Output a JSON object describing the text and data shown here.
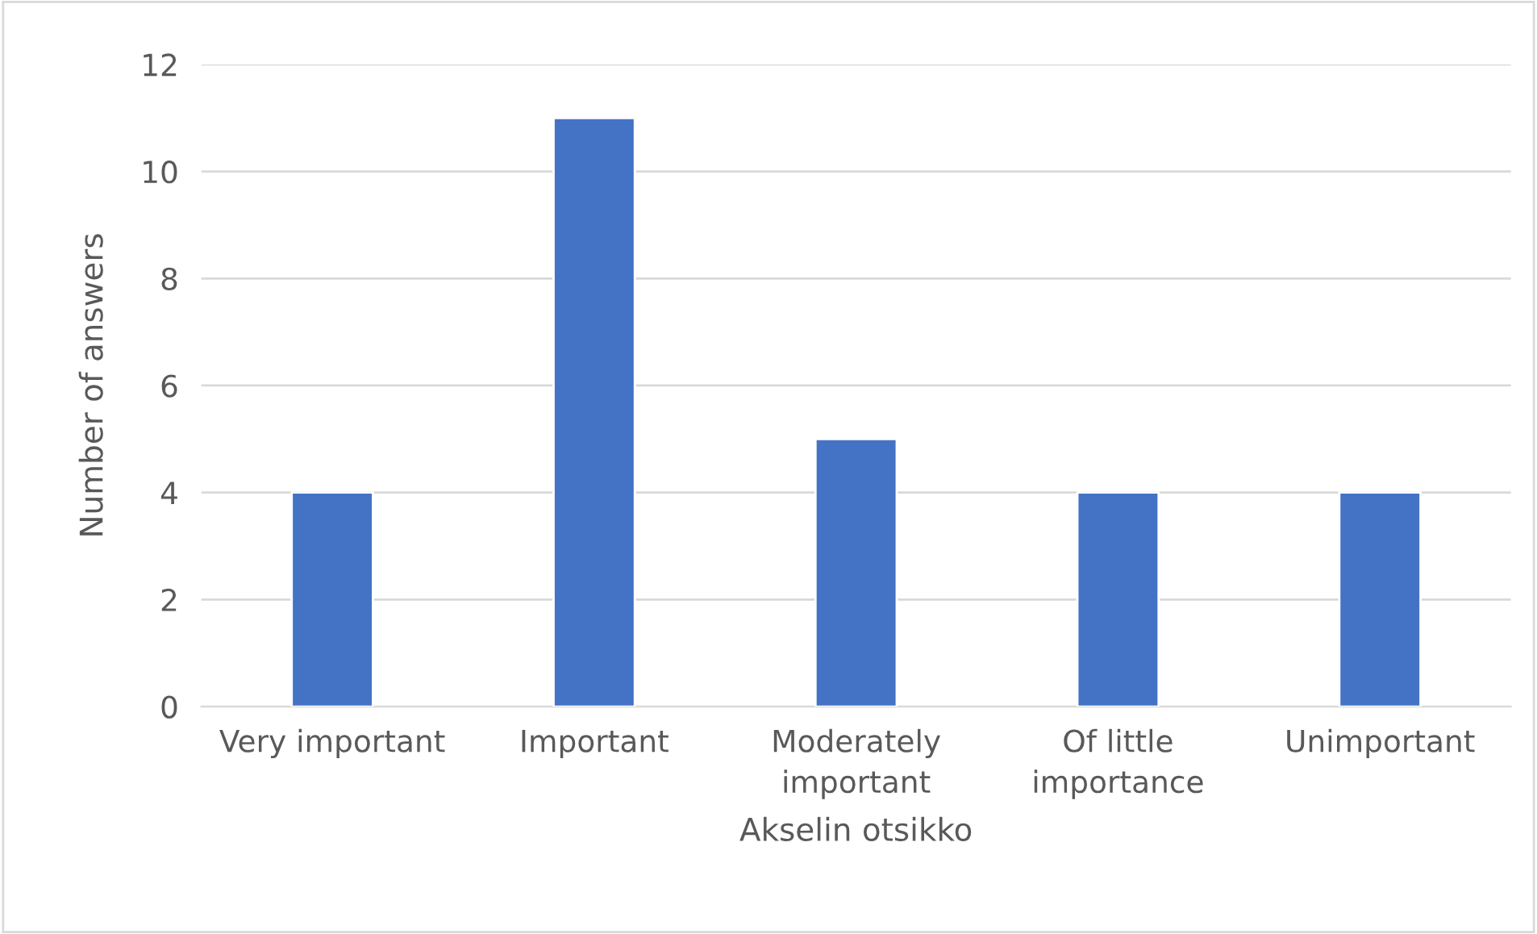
{
  "chart_data": {
    "type": "bar",
    "xlabel": "Akselin otsikko",
    "ylabel": "Number of answers",
    "categories": [
      "Very important",
      "Important",
      "Moderately important",
      "Of little importance",
      "Unimportant"
    ],
    "values": [
      4,
      11,
      5,
      4,
      4
    ],
    "color": "#4472c4",
    "ylim": [
      0,
      12
    ],
    "yticks": [
      0,
      2,
      4,
      6,
      8,
      10,
      12
    ],
    "grid": "y"
  }
}
